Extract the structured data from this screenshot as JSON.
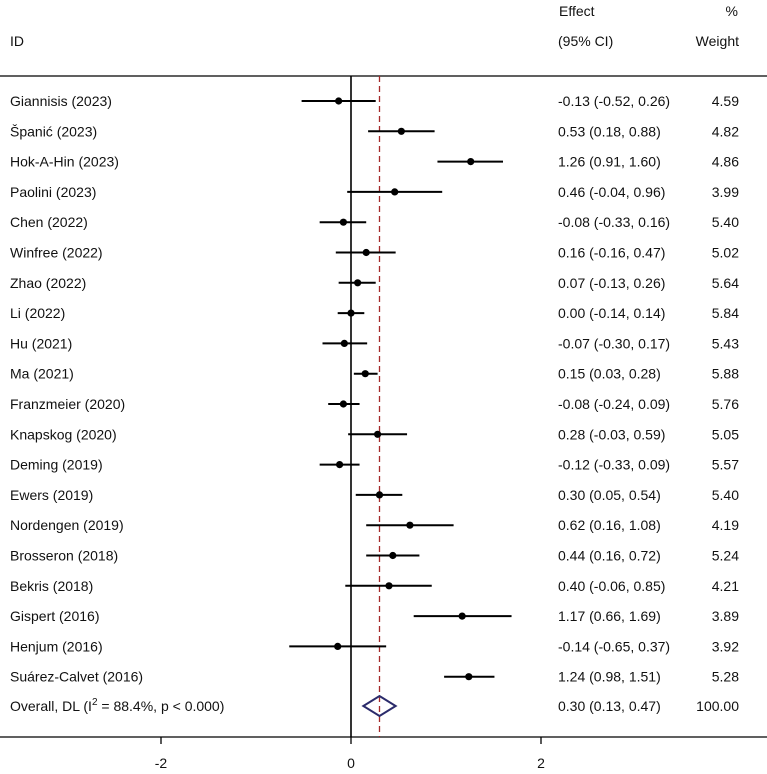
{
  "header": {
    "id_label": "ID",
    "effect_label_1": "Effect",
    "effect_label_2": "(95% CI)",
    "weight_label_1": "%",
    "weight_label_2": "Weight"
  },
  "chart_data": {
    "type": "forest",
    "x_ticks": [
      -2,
      0,
      2
    ],
    "x_range": [
      -3.65,
      4.3
    ],
    "reference_line": 0,
    "overall_line": 0.3,
    "studies": [
      {
        "label": "Giannisis (2023)",
        "effect": -0.13,
        "lower": -0.52,
        "upper": 0.26,
        "ci_text": "-0.13 (-0.52, 0.26)",
        "weight": "4.59"
      },
      {
        "label": "Španić (2023)",
        "effect": 0.53,
        "lower": 0.18,
        "upper": 0.88,
        "ci_text": "0.53 (0.18, 0.88)",
        "weight": "4.82"
      },
      {
        "label": "Hok-A-Hin (2023)",
        "effect": 1.26,
        "lower": 0.91,
        "upper": 1.6,
        "ci_text": "1.26 (0.91, 1.60)",
        "weight": "4.86"
      },
      {
        "label": "Paolini (2023)",
        "effect": 0.46,
        "lower": -0.04,
        "upper": 0.96,
        "ci_text": "0.46 (-0.04, 0.96)",
        "weight": "3.99"
      },
      {
        "label": "Chen (2022)",
        "effect": -0.08,
        "lower": -0.33,
        "upper": 0.16,
        "ci_text": "-0.08 (-0.33, 0.16)",
        "weight": "5.40"
      },
      {
        "label": "Winfree (2022)",
        "effect": 0.16,
        "lower": -0.16,
        "upper": 0.47,
        "ci_text": "0.16 (-0.16, 0.47)",
        "weight": "5.02"
      },
      {
        "label": "Zhao (2022)",
        "effect": 0.07,
        "lower": -0.13,
        "upper": 0.26,
        "ci_text": "0.07 (-0.13, 0.26)",
        "weight": "5.64"
      },
      {
        "label": "Li (2022)",
        "effect": 0.0,
        "lower": -0.14,
        "upper": 0.14,
        "ci_text": "0.00 (-0.14, 0.14)",
        "weight": "5.84"
      },
      {
        "label": "Hu (2021)",
        "effect": -0.07,
        "lower": -0.3,
        "upper": 0.17,
        "ci_text": "-0.07 (-0.30, 0.17)",
        "weight": "5.43"
      },
      {
        "label": "Ma (2021)",
        "effect": 0.15,
        "lower": 0.03,
        "upper": 0.28,
        "ci_text": "0.15 (0.03, 0.28)",
        "weight": "5.88"
      },
      {
        "label": "Franzmeier (2020)",
        "effect": -0.08,
        "lower": -0.24,
        "upper": 0.09,
        "ci_text": "-0.08 (-0.24, 0.09)",
        "weight": "5.76"
      },
      {
        "label": "Knapskog (2020)",
        "effect": 0.28,
        "lower": -0.03,
        "upper": 0.59,
        "ci_text": "0.28 (-0.03, 0.59)",
        "weight": "5.05"
      },
      {
        "label": "Deming (2019)",
        "effect": -0.12,
        "lower": -0.33,
        "upper": 0.09,
        "ci_text": "-0.12 (-0.33, 0.09)",
        "weight": "5.57"
      },
      {
        "label": "Ewers (2019)",
        "effect": 0.3,
        "lower": 0.05,
        "upper": 0.54,
        "ci_text": "0.30 (0.05, 0.54)",
        "weight": "5.40"
      },
      {
        "label": "Nordengen (2019)",
        "effect": 0.62,
        "lower": 0.16,
        "upper": 1.08,
        "ci_text": "0.62 (0.16, 1.08)",
        "weight": "4.19"
      },
      {
        "label": "Brosseron (2018)",
        "effect": 0.44,
        "lower": 0.16,
        "upper": 0.72,
        "ci_text": "0.44 (0.16, 0.72)",
        "weight": "5.24"
      },
      {
        "label": "Bekris (2018)",
        "effect": 0.4,
        "lower": -0.06,
        "upper": 0.85,
        "ci_text": "0.40 (-0.06, 0.85)",
        "weight": "4.21"
      },
      {
        "label": "Gispert (2016)",
        "effect": 1.17,
        "lower": 0.66,
        "upper": 1.69,
        "ci_text": "1.17 (0.66, 1.69)",
        "weight": "3.89"
      },
      {
        "label": "Henjum (2016)",
        "effect": -0.14,
        "lower": -0.65,
        "upper": 0.37,
        "ci_text": "-0.14 (-0.65, 0.37)",
        "weight": "3.92"
      },
      {
        "label": "Suárez-Calvet (2016)",
        "effect": 1.24,
        "lower": 0.98,
        "upper": 1.51,
        "ci_text": "1.24 (0.98, 1.51)",
        "weight": "5.28"
      }
    ],
    "overall": {
      "label_prefix": "Overall, DL (I",
      "label_sup": "2",
      "label_suffix": " = 88.4%, p < 0.000)",
      "effect": 0.3,
      "lower": 0.13,
      "upper": 0.47,
      "ci_text": "0.30 (0.13, 0.47)",
      "weight": "100.00"
    },
    "colors": {
      "marks": "#000000",
      "overall_line": "#a52a2a",
      "diamond": "#2b2b6b"
    }
  }
}
